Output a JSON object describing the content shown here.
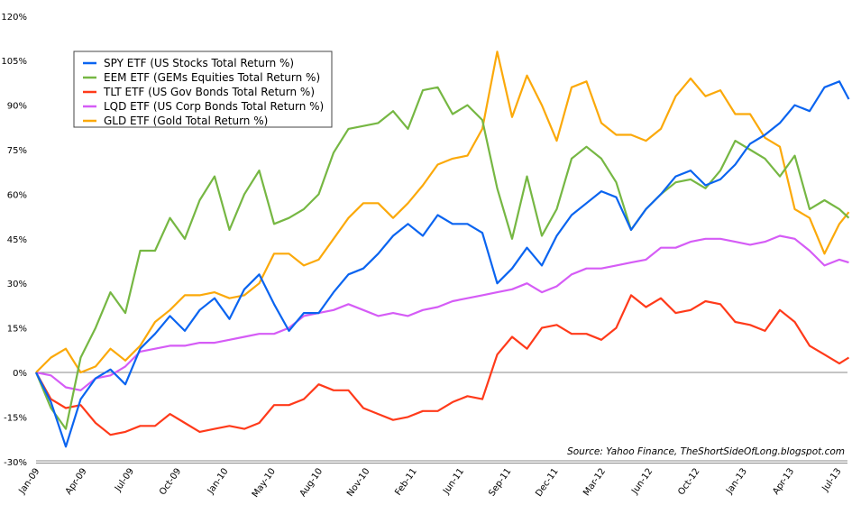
{
  "chart_data": {
    "type": "line",
    "title": "",
    "xlabel": "",
    "ylabel": "",
    "ylim": [
      -30,
      120
    ],
    "y_ticks": [
      "120%",
      "105%",
      "90%",
      "75%",
      "60%",
      "45%",
      "30%",
      "15%",
      "0%",
      "-15%",
      "-30%"
    ],
    "y_tick_values": [
      120,
      105,
      90,
      75,
      60,
      45,
      30,
      15,
      0,
      -15,
      -30
    ],
    "x_ticks": [
      "Jan-09",
      "Apr-09",
      "Jul-09",
      "Oct-09",
      "Jan-10",
      "May-10",
      "Aug-10",
      "Nov-10",
      "Feb-11",
      "Jun-11",
      "Sep-11",
      "Dec-11",
      "Mar-12",
      "Jun-12",
      "Oct-12",
      "Jan-13",
      "Apr-13",
      "Jul-13"
    ],
    "grid": false,
    "zero_line": true,
    "legend_position": "top-left",
    "x": [
      "2009-01-01",
      "2009-02-01",
      "2009-03-01",
      "2009-04-01",
      "2009-05-01",
      "2009-06-01",
      "2009-07-01",
      "2009-08-01",
      "2009-09-01",
      "2009-10-01",
      "2009-11-01",
      "2009-12-01",
      "2010-01-01",
      "2010-02-01",
      "2010-03-01",
      "2010-04-01",
      "2010-05-01",
      "2010-06-01",
      "2010-07-01",
      "2010-08-01",
      "2010-09-01",
      "2010-10-01",
      "2010-11-01",
      "2010-12-01",
      "2011-01-01",
      "2011-02-01",
      "2011-03-01",
      "2011-04-01",
      "2011-05-01",
      "2011-06-01",
      "2011-07-01",
      "2011-08-01",
      "2011-09-01",
      "2011-10-01",
      "2011-11-01",
      "2011-12-01",
      "2012-01-01",
      "2012-02-01",
      "2012-03-01",
      "2012-04-01",
      "2012-05-01",
      "2012-06-01",
      "2012-07-01",
      "2012-08-01",
      "2012-09-01",
      "2012-10-01",
      "2012-11-01",
      "2012-12-01",
      "2013-01-01",
      "2013-02-01",
      "2013-03-01",
      "2013-04-01",
      "2013-05-01",
      "2013-06-01",
      "2013-07-01",
      "2013-07-20"
    ],
    "series": [
      {
        "name": "SPY ETF (US Stocks Total Return %)",
        "color": "#0a64f0",
        "values": [
          0,
          -10,
          -25,
          -9,
          -2,
          1,
          -4,
          8,
          13,
          19,
          14,
          21,
          25,
          18,
          28,
          33,
          23,
          14,
          20,
          20,
          27,
          33,
          35,
          40,
          46,
          50,
          46,
          53,
          50,
          50,
          47,
          30,
          35,
          42,
          36,
          46,
          53,
          57,
          61,
          59,
          48,
          55,
          60,
          66,
          68,
          63,
          65,
          70,
          77,
          80,
          84,
          90,
          88,
          96,
          98,
          92
        ]
      },
      {
        "name": "EEM ETF (GEMs Equities Total Return %)",
        "color": "#76b743",
        "values": [
          0,
          -12,
          -19,
          5,
          15,
          27,
          20,
          41,
          41,
          52,
          45,
          58,
          66,
          48,
          60,
          68,
          50,
          52,
          55,
          60,
          74,
          82,
          83,
          84,
          88,
          82,
          95,
          96,
          87,
          90,
          85,
          62,
          45,
          66,
          46,
          55,
          72,
          76,
          72,
          64,
          48,
          55,
          60,
          64,
          65,
          62,
          68,
          78,
          75,
          72,
          66,
          73,
          55,
          58,
          55,
          52
        ]
      },
      {
        "name": "TLT ETF (US Gov Bonds Total Return %)",
        "color": "#ff3a1a",
        "values": [
          0,
          -9,
          -12,
          -11,
          -17,
          -21,
          -20,
          -18,
          -18,
          -14,
          -17,
          -20,
          -19,
          -18,
          -19,
          -17,
          -11,
          -11,
          -9,
          -4,
          -6,
          -6,
          -12,
          -14,
          -16,
          -15,
          -13,
          -13,
          -10,
          -8,
          -9,
          6,
          12,
          8,
          15,
          16,
          13,
          13,
          11,
          15,
          26,
          22,
          25,
          20,
          21,
          24,
          23,
          17,
          16,
          14,
          21,
          17,
          9,
          6,
          3,
          5
        ]
      },
      {
        "name": "LQD ETF (US Corp Bonds Total Return %)",
        "color": "#d55cf6",
        "values": [
          0,
          -1,
          -5,
          -6,
          -2,
          -1,
          2,
          7,
          8,
          9,
          9,
          10,
          10,
          11,
          12,
          13,
          13,
          15,
          19,
          20,
          21,
          23,
          21,
          19,
          20,
          19,
          21,
          22,
          24,
          25,
          26,
          27,
          28,
          30,
          27,
          29,
          33,
          35,
          35,
          36,
          37,
          38,
          42,
          42,
          44,
          45,
          45,
          44,
          43,
          44,
          46,
          45,
          41,
          36,
          38,
          37
        ]
      },
      {
        "name": "GLD ETF (Gold Total Return %)",
        "color": "#fba90a",
        "values": [
          0,
          5,
          8,
          0,
          2,
          8,
          4,
          9,
          17,
          21,
          26,
          26,
          27,
          25,
          26,
          30,
          40,
          40,
          36,
          38,
          45,
          52,
          57,
          57,
          52,
          57,
          63,
          70,
          72,
          73,
          82,
          108,
          86,
          100,
          90,
          78,
          96,
          98,
          84,
          80,
          80,
          78,
          82,
          93,
          99,
          93,
          95,
          87,
          87,
          79,
          76,
          55,
          52,
          40,
          50,
          54
        ]
      }
    ],
    "annotations": [
      "Source: Yahoo Finance, TheShortSideOfLong.blogspot.com"
    ]
  }
}
